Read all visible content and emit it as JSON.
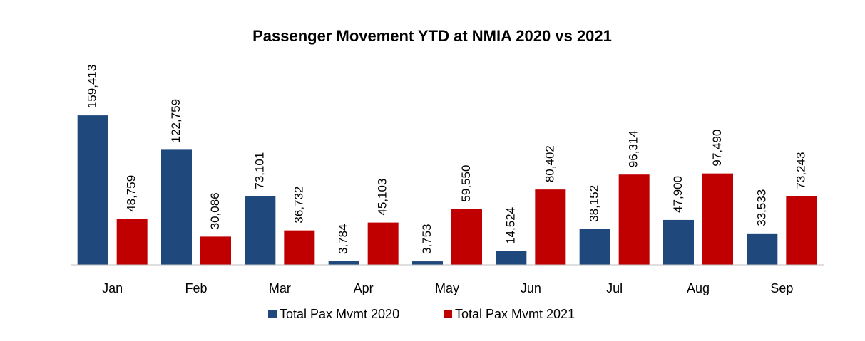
{
  "chart_data": {
    "type": "bar",
    "title": "Passenger Movement YTD at NMIA 2020 vs 2021",
    "categories": [
      "Jan",
      "Feb",
      "Mar",
      "Apr",
      "May",
      "Jun",
      "Jul",
      "Aug",
      "Sep"
    ],
    "series": [
      {
        "name": "Total Pax Mvmt 2020",
        "color": "#1f497d",
        "values": [
          159413,
          122759,
          73101,
          3784,
          3753,
          14524,
          38152,
          47900,
          33533
        ],
        "value_labels": [
          "159,413",
          "122,759",
          "73,101",
          "3,784",
          "3,753",
          "14,524",
          "38,152",
          "47,900",
          "33,533"
        ]
      },
      {
        "name": "Total Pax Mvmt 2021",
        "color": "#c00000",
        "values": [
          48759,
          30086,
          36732,
          45103,
          59550,
          80402,
          96314,
          97490,
          73243
        ],
        "value_labels": [
          "48,759",
          "30,086",
          "36,732",
          "45,103",
          "59,550",
          "80,402",
          "96,314",
          "97,490",
          "73,243"
        ]
      }
    ],
    "ylim": [
      0,
      180000
    ],
    "legend": "bottom"
  }
}
